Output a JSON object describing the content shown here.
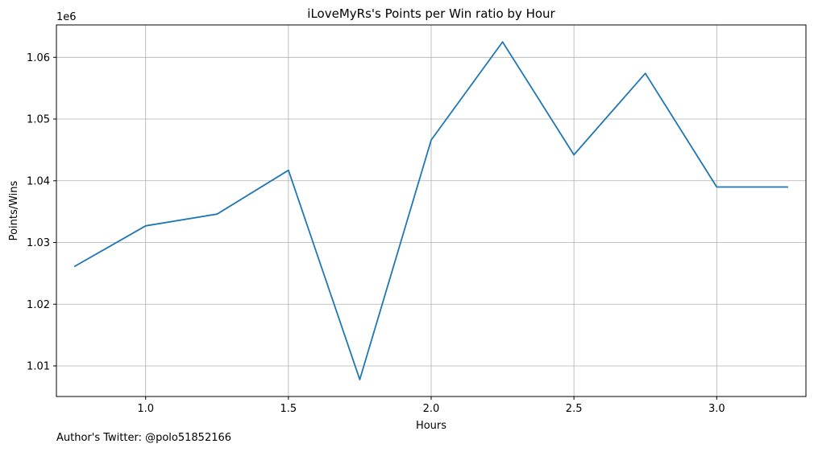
{
  "chart_data": {
    "type": "line",
    "title": "iLoveMyRs's Points per Win ratio by Hour",
    "xlabel": "Hours",
    "ylabel": "Points/Wins",
    "y_offset_label": "1e6",
    "xlim": [
      0.6875,
      3.3125
    ],
    "ylim": [
      1.00505,
      1.06525
    ],
    "x_ticks": [
      1.0,
      1.5,
      2.0,
      2.5,
      3.0
    ],
    "x_tick_labels": [
      "1.0",
      "1.5",
      "2.0",
      "2.5",
      "3.0"
    ],
    "y_ticks": [
      1.01,
      1.02,
      1.03,
      1.04,
      1.05,
      1.06
    ],
    "y_tick_labels": [
      "1.01",
      "1.02",
      "1.03",
      "1.04",
      "1.05",
      "1.06"
    ],
    "grid": true,
    "line_color": "#1f77b4",
    "series": [
      {
        "x": [
          0.75,
          1.0,
          1.25,
          1.5,
          1.75,
          2.0,
          2.25,
          2.5,
          2.75,
          3.0,
          3.25
        ],
        "y": [
          1.0261,
          1.0327,
          1.0346,
          1.0417,
          1.0078,
          1.0466,
          1.0625,
          1.0442,
          1.0574,
          1.039,
          1.039
        ]
      }
    ]
  },
  "footer": {
    "text": "Author's Twitter: @polo51852166"
  }
}
